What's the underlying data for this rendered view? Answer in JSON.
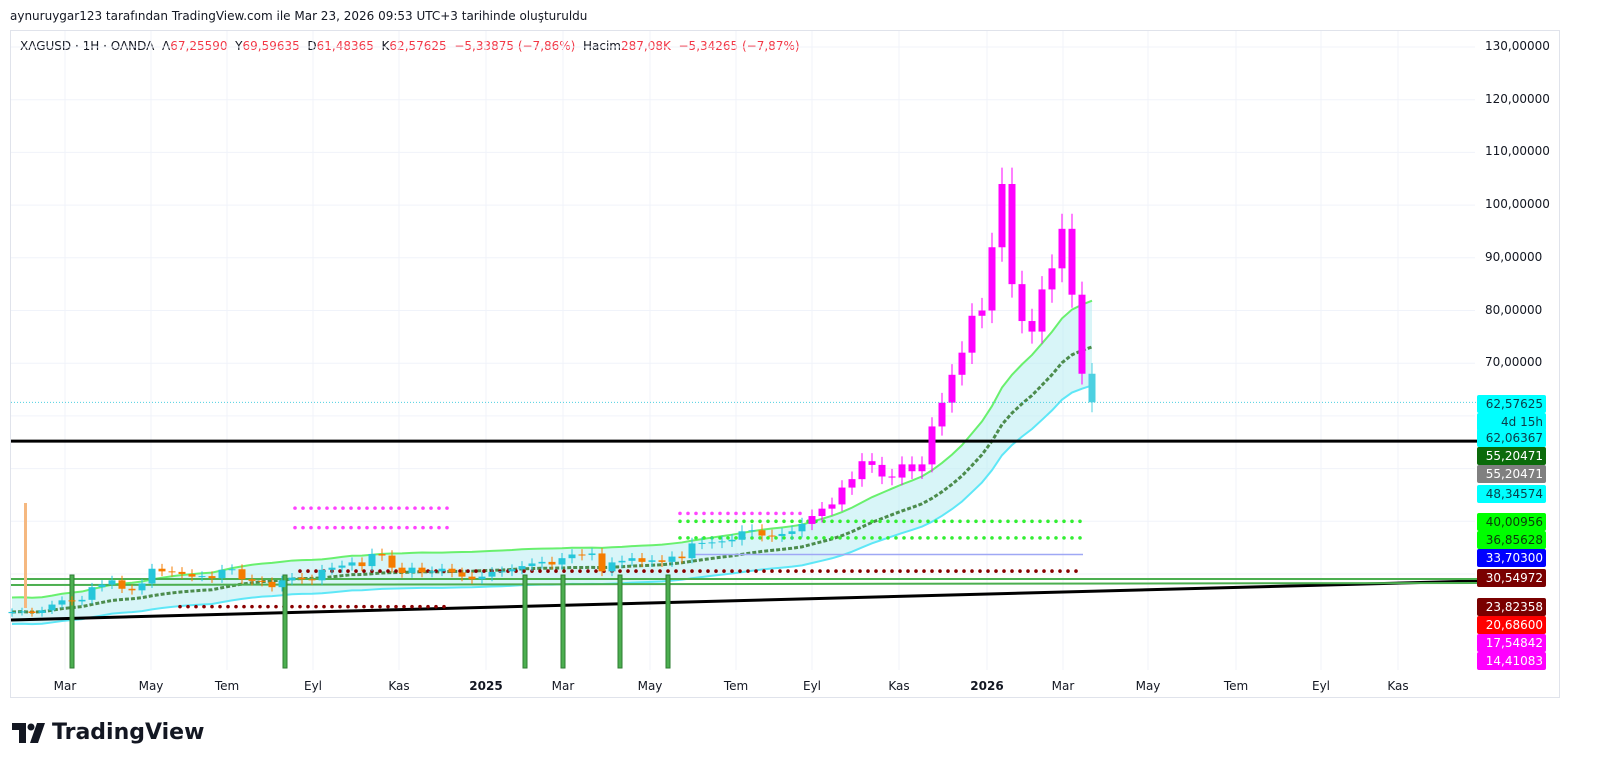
{
  "credit": "aynuruygar123 tarafından TradingView.com ile Mar 23, 2026 09:53 UTC+3 tarihinde oluşturuldu",
  "legend": {
    "symbol": "XAGUSD · 1H · OANDA",
    "o_label": "A",
    "o": "67,25590",
    "h_label": "Y",
    "h": "69,59635",
    "l_label": "D",
    "l": "61,48365",
    "c_label": "K",
    "c": "62,57625",
    "change": "−5,33875 (−7,86%)",
    "vol_label": "Hacim",
    "vol": "287,08K",
    "vol_change": "−5,34265 (−7,87%)"
  },
  "price_axis": [
    "130,00000",
    "120,00000",
    "110,00000",
    "100,00000",
    "90,00000",
    "80,00000",
    "70,00000"
  ],
  "price_labels": [
    {
      "text": "62,57625",
      "bg": "#00ffff",
      "fg": "#0b3d4a"
    },
    {
      "text": "4d 15h",
      "bg": "#00ffff",
      "fg": "#0b3d4a"
    },
    {
      "text": "62,06367",
      "bg": "#00ffff",
      "fg": "#0b3d4a"
    },
    {
      "text": "55,20471",
      "bg": "#0b6b0b",
      "fg": "#ffffff"
    },
    {
      "text": "55,20471",
      "bg": "#808080",
      "fg": "#ffffff"
    },
    {
      "text": "48,34574",
      "bg": "#00ffff",
      "fg": "#0b3d4a"
    },
    {
      "text": "40,00956",
      "bg": "#00ff00",
      "fg": "#0b3d0b"
    },
    {
      "text": "36,85628",
      "bg": "#00ff00",
      "fg": "#0b3d0b"
    },
    {
      "text": "33,70300",
      "bg": "#0000ff",
      "fg": "#ffffff"
    },
    {
      "text": "30,54972",
      "bg": "#7a0000",
      "fg": "#ffffff"
    },
    {
      "text": "23,82358",
      "bg": "#7a0000",
      "fg": "#ffffff"
    },
    {
      "text": "20,68600",
      "bg": "#ff0000",
      "fg": "#ffffff"
    },
    {
      "text": "17,54842",
      "bg": "#ff00ff",
      "fg": "#ffffff"
    },
    {
      "text": "14,41083",
      "bg": "#ff00ff",
      "fg": "#ffffff"
    }
  ],
  "time_axis": [
    "Mar",
    "May",
    "Tem",
    "Eyl",
    "Kas",
    "2025",
    "Mar",
    "May",
    "Tem",
    "Eyl",
    "Kas",
    "2026",
    "Mar",
    "May",
    "Tem",
    "Eyl",
    "Kas"
  ],
  "brand": "TradingView",
  "colors": {
    "up_early": "#26c6da",
    "down_early": "#f57c00",
    "trend": "#ff00ff",
    "last": "#4dd0e1"
  },
  "chart_data": {
    "type": "candlestick",
    "symbol": "XAGUSD",
    "ylim": [
      20,
      130
    ],
    "last_price": 62.57625,
    "horizontal_level": 55.20471,
    "weekly_close": [
      22.8,
      22.9,
      22.6,
      23.1,
      24.2,
      25.0,
      24.8,
      25.1,
      27.5,
      28.0,
      28.8,
      27.2,
      26.9,
      28.2,
      31.0,
      30.5,
      30.4,
      30.0,
      29.5,
      29.6,
      29.2,
      30.8,
      30.9,
      29.0,
      28.7,
      28.5,
      27.5,
      28.8,
      29.3,
      29.0,
      28.8,
      30.8,
      31.2,
      31.6,
      32.2,
      31.5,
      33.8,
      33.5,
      31.2,
      30.2,
      31.2,
      30.3,
      30.5,
      31.0,
      30.3,
      29.5,
      29.0,
      29.5,
      30.4,
      30.5,
      30.9,
      31.5,
      32.0,
      32.3,
      31.8,
      33.0,
      33.7,
      33.6,
      33.9,
      30.5,
      32.2,
      32.5,
      33.0,
      32.3,
      32.6,
      32.3,
      33.3,
      33.0,
      35.8,
      35.9,
      36.0,
      36.2,
      36.5,
      38.1,
      38.3,
      37.3,
      37.2,
      37.6,
      38.1,
      39.5,
      41.0,
      42.4,
      43.2,
      46.4,
      48.0,
      51.4,
      50.7,
      48.5,
      48.3,
      50.8,
      49.5,
      50.8,
      58.0,
      62.5,
      67.8,
      72.0,
      79.0,
      80.0,
      92.0,
      104.0,
      85.0,
      78.0,
      76.0,
      84.0,
      88.0,
      95.5,
      83.0,
      68.0,
      62.58
    ]
  }
}
